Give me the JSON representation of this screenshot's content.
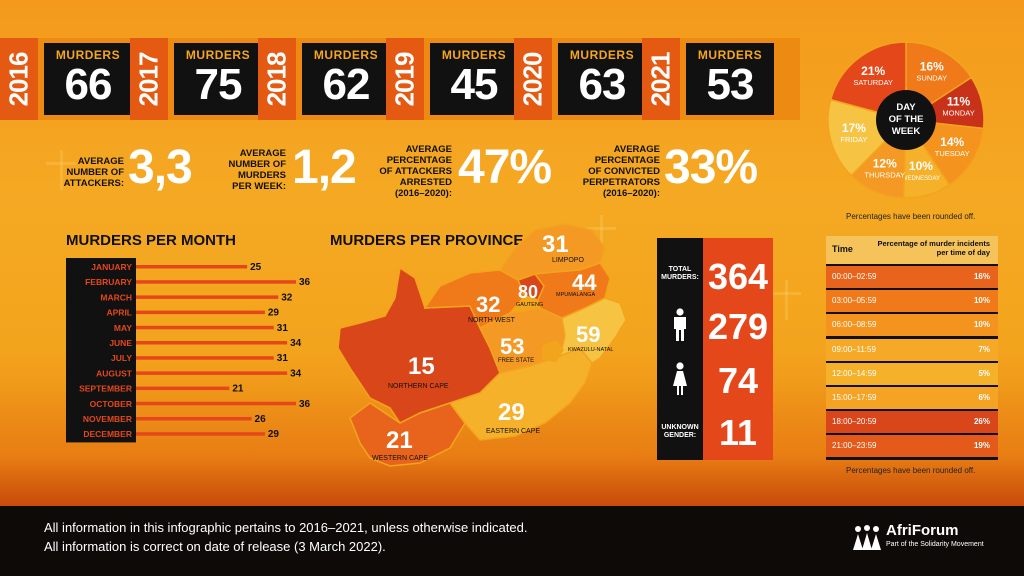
{
  "colors": {
    "dark": "#111111",
    "orange": "#ec8a12",
    "red_orange": "#e4471a",
    "yellow": "#f6c25a",
    "accent_text": "#f5a623"
  },
  "years": [
    {
      "year": "2016",
      "label": "MURDERS",
      "value": "66"
    },
    {
      "year": "2017",
      "label": "MURDERS",
      "value": "75"
    },
    {
      "year": "2018",
      "label": "MURDERS",
      "value": "62"
    },
    {
      "year": "2019",
      "label": "MURDERS",
      "value": "45"
    },
    {
      "year": "2020",
      "label": "MURDERS",
      "value": "63"
    },
    {
      "year": "2021",
      "label": "MURDERS",
      "value": "53"
    }
  ],
  "stats": [
    {
      "label": "AVERAGE\nNUMBER OF\nATTACKERS:",
      "value": "3,3"
    },
    {
      "label": "AVERAGE\nNUMBER OF\nMURDERS\nPER WEEK:",
      "value": "1,2"
    },
    {
      "label": "AVERAGE\nPERCENTAGE\nOF ATTACKERS\nARRESTED\n(2016–2020):",
      "value": "47%"
    },
    {
      "label": "AVERAGE\nPERCENTAGE\nOF CONVICTED\nPERPETRATORS\n(2016–2020):",
      "value": "33%"
    }
  ],
  "sections": {
    "months_title": "MURDERS PER MONTH",
    "province_title": "MURDERS PER PROVINCE"
  },
  "totals": {
    "total_label": "TOTAL\nMURDERS:",
    "total": "364",
    "male": "279",
    "female": "74",
    "unknown_label": "UNKNOWN\nGENDER:",
    "unknown": "11",
    "male_icon": "male-person-icon",
    "female_icon": "female-person-icon"
  },
  "pie": {
    "center_label": [
      "DAY",
      "OF THE",
      "WEEK"
    ],
    "note": "Percentages have been rounded off."
  },
  "time_table": {
    "col1": "Time",
    "col2": "Percentage of murder incidents per time of day",
    "rows": [
      {
        "time": "00:00–02:59",
        "pct": "16%"
      },
      {
        "time": "03:00–05:59",
        "pct": "10%"
      },
      {
        "time": "06:00–08:59",
        "pct": "10%"
      },
      {
        "time": "09:00–11:59",
        "pct": "7%"
      },
      {
        "time": "12:00–14:59",
        "pct": "5%"
      },
      {
        "time": "15:00–17:59",
        "pct": "6%"
      },
      {
        "time": "18:00–20:59",
        "pct": "26%"
      },
      {
        "time": "21:00–23:59",
        "pct": "19%"
      }
    ],
    "note": "Percentages have been rounded off."
  },
  "footer": {
    "line1": "All information in this infographic pertains to 2016–2021, unless otherwise indicated.",
    "line2": "All information is correct on date of release (3 March 2022).",
    "logo_name": "AfriForum",
    "logo_sub": "Part of the Solidarity Movement",
    "logo_icon": "afriforum-people-logo-icon"
  },
  "chart_data": [
    {
      "type": "bar",
      "title": "MURDERS PER MONTH",
      "orientation": "horizontal",
      "categories": [
        "JANUARY",
        "FEBRUARY",
        "MARCH",
        "APRIL",
        "MAY",
        "JUNE",
        "JULY",
        "AUGUST",
        "SEPTEMBER",
        "OCTOBER",
        "NOVEMBER",
        "DECEMBER"
      ],
      "values": [
        25,
        36,
        32,
        29,
        31,
        34,
        31,
        34,
        21,
        36,
        26,
        29
      ]
    },
    {
      "type": "pie",
      "title": "DAY OF THE WEEK",
      "slices": [
        {
          "label": "SUNDAY",
          "value": 16
        },
        {
          "label": "MONDAY",
          "value": 11
        },
        {
          "label": "TUESDAY",
          "value": 14
        },
        {
          "label": "WEDNESDAY",
          "value": 10
        },
        {
          "label": "THURSDAY",
          "value": 12
        },
        {
          "label": "FRIDAY",
          "value": 17
        },
        {
          "label": "SATURDAY",
          "value": 21
        }
      ],
      "colors": [
        "#f07a1a",
        "#c8321a",
        "#f4931e",
        "#f6b12a",
        "#f49a24",
        "#f7c342",
        "#e4471a"
      ]
    },
    {
      "type": "table",
      "title": "MURDERS PER PROVINCE",
      "rows": [
        {
          "province": "LIMPOPO",
          "value": 31
        },
        {
          "province": "MPUMALANGA",
          "value": 44
        },
        {
          "province": "GAUTENG",
          "value": 80
        },
        {
          "province": "NORTH WEST",
          "value": 32
        },
        {
          "province": "KWAZULU-NATAL",
          "value": 59
        },
        {
          "province": "FREE STATE",
          "value": 53
        },
        {
          "province": "NORTHERN CAPE",
          "value": 15
        },
        {
          "province": "EASTERN CAPE",
          "value": 29
        },
        {
          "province": "WESTERN CAPE",
          "value": 21
        }
      ]
    }
  ]
}
